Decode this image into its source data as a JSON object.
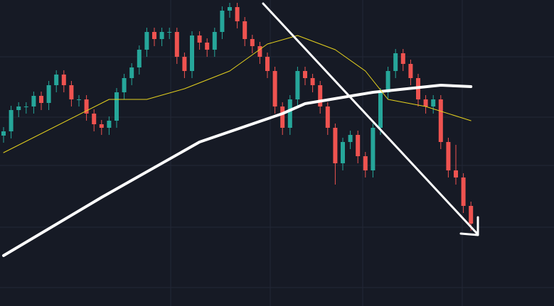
{
  "chart_data": {
    "type": "candlestick",
    "ylim": [
      0,
      431
    ],
    "up_color": "#26a69a",
    "down_color": "#ef5350",
    "open": [
      240,
      246,
      276,
      281,
      281,
      296,
      286,
      311,
      326,
      311,
      291,
      291,
      271,
      256,
      251,
      261,
      301,
      321,
      336,
      361,
      386,
      376,
      386,
      386,
      351,
      331,
      381,
      371,
      361,
      386,
      416,
      421,
      401,
      376,
      366,
      351,
      331,
      281,
      251,
      291,
      331,
      321,
      311,
      281,
      251,
      201,
      231,
      241,
      211,
      191,
      251,
      301,
      331,
      356,
      341,
      321,
      291,
      281,
      291,
      231,
      191,
      181,
      141
    ],
    "high": [
      252,
      282,
      287,
      287,
      302,
      302,
      317,
      332,
      332,
      317,
      297,
      297,
      277,
      262,
      267,
      307,
      327,
      342,
      367,
      392,
      392,
      392,
      392,
      392,
      357,
      387,
      387,
      377,
      392,
      422,
      427,
      427,
      407,
      382,
      372,
      357,
      337,
      287,
      297,
      337,
      337,
      327,
      317,
      287,
      257,
      237,
      247,
      247,
      217,
      257,
      307,
      337,
      362,
      362,
      347,
      327,
      297,
      297,
      297,
      237,
      227,
      187,
      147
    ],
    "low": [
      230,
      236,
      266,
      271,
      271,
      276,
      276,
      301,
      301,
      281,
      281,
      261,
      246,
      241,
      241,
      251,
      291,
      311,
      326,
      351,
      366,
      366,
      376,
      341,
      321,
      321,
      361,
      351,
      351,
      376,
      406,
      391,
      366,
      356,
      341,
      321,
      271,
      241,
      241,
      281,
      311,
      301,
      271,
      241,
      171,
      191,
      221,
      201,
      181,
      181,
      241,
      291,
      321,
      331,
      311,
      281,
      271,
      271,
      221,
      181,
      171,
      131,
      106
    ],
    "close": [
      246,
      276,
      281,
      281,
      296,
      286,
      311,
      326,
      311,
      291,
      291,
      271,
      256,
      251,
      261,
      301,
      321,
      336,
      361,
      386,
      376,
      386,
      386,
      351,
      331,
      381,
      371,
      361,
      386,
      416,
      421,
      401,
      376,
      366,
      351,
      331,
      281,
      251,
      291,
      331,
      321,
      311,
      281,
      251,
      201,
      231,
      241,
      211,
      191,
      251,
      301,
      331,
      356,
      341,
      321,
      291,
      281,
      291,
      231,
      191,
      181,
      141,
      116
    ],
    "lines": [
      {
        "color": "#ffffff",
        "width": 4,
        "x": [
          0,
          13,
          26,
          37,
          40,
          49,
          58,
          62
        ],
        "values": [
          71,
          153,
          231,
          271,
          285,
          301,
          311,
          309
        ]
      },
      {
        "color": "#e6d21e",
        "width": 1,
        "x": [
          0,
          14,
          19,
          24,
          30,
          35,
          39,
          44,
          48,
          51,
          56,
          62
        ],
        "values": [
          216,
          291,
          291,
          306,
          331,
          369,
          381,
          361,
          331,
          291,
          281,
          261
        ]
      }
    ]
  }
}
